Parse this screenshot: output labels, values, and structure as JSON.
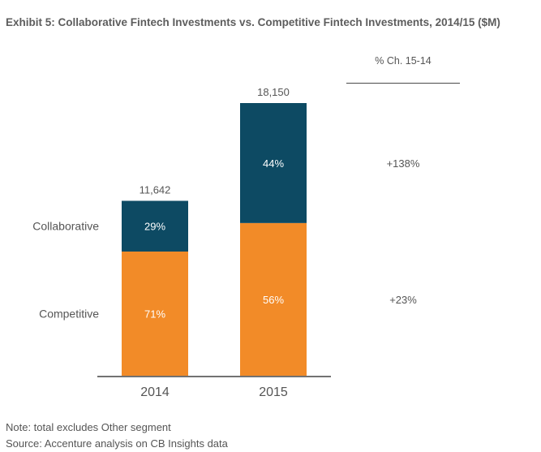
{
  "title": "Exhibit 5: Collaborative Fintech Investments vs. Competitive Fintech Investments, 2014/15 ($M)",
  "change_column_header": "% Ch. 15-14",
  "notes": {
    "note": "Note: total excludes Other segment",
    "source": "Source: Accenture analysis on CB Insights data"
  },
  "colors": {
    "collaborative": "#0d4a63",
    "competitive": "#f28b28",
    "axis": "#444444",
    "text": "#555555"
  },
  "chart_data": {
    "type": "bar",
    "stacked": true,
    "categories": [
      "2014",
      "2015"
    ],
    "totals": [
      11642,
      18150
    ],
    "total_labels": [
      "11,642",
      "18,150"
    ],
    "series": [
      {
        "name": "Competitive",
        "values": [
          8266,
          10164
        ],
        "share_labels": [
          "71%",
          "56%"
        ],
        "change": "+23%"
      },
      {
        "name": "Collaborative",
        "values": [
          3376,
          7986
        ],
        "share_labels": [
          "29%",
          "44%"
        ],
        "change": "+138%"
      }
    ],
    "ylim": [
      0,
      18150
    ],
    "grid": false
  }
}
